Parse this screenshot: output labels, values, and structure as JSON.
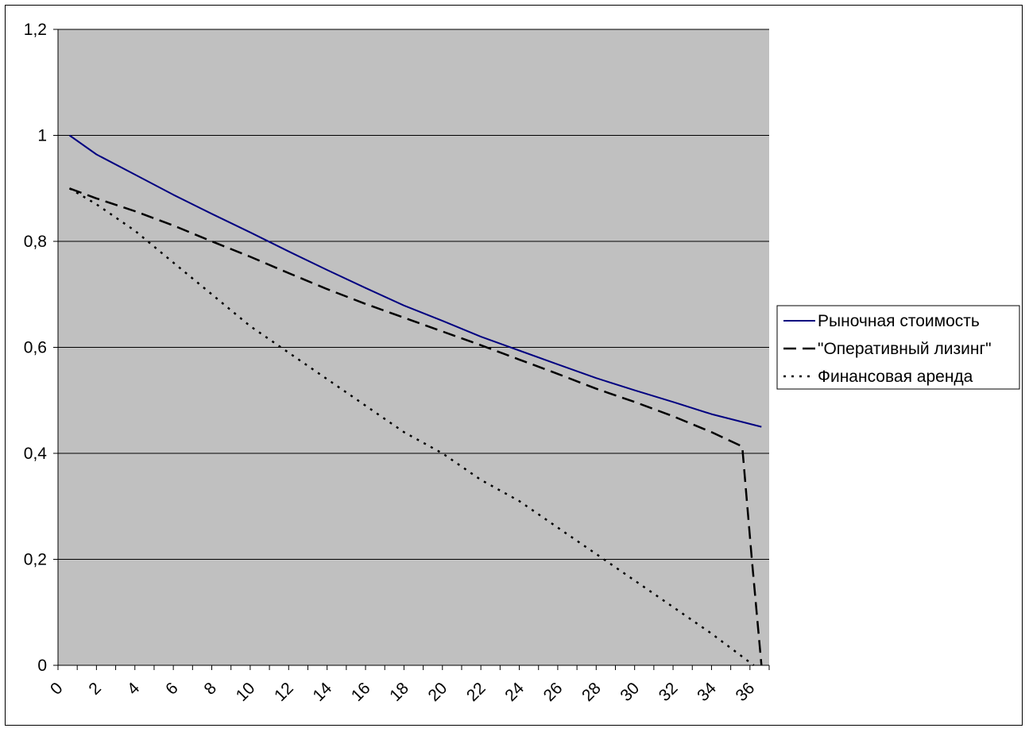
{
  "chart_data": {
    "type": "line",
    "title": "",
    "xlabel": "",
    "ylabel": "",
    "xlim": [
      0,
      37
    ],
    "ylim": [
      0,
      1.2
    ],
    "x_ticks": [
      0,
      2,
      4,
      6,
      8,
      10,
      12,
      14,
      16,
      18,
      20,
      22,
      24,
      26,
      28,
      30,
      32,
      34,
      36
    ],
    "x_tick_labels": [
      "0",
      "2",
      "4",
      "6",
      "8",
      "10",
      "12",
      "14",
      "16",
      "18",
      "20",
      "22",
      "24",
      "26",
      "28",
      "30",
      "32",
      "34",
      "36"
    ],
    "y_ticks": [
      0,
      0.2,
      0.4,
      0.6,
      0.8,
      1.0,
      1.2
    ],
    "y_tick_labels": [
      "0",
      "0,2",
      "0,4",
      "0,6",
      "0,8",
      "1",
      "1,2"
    ],
    "grid": "horizontal",
    "plot_background": "#c0c0c0",
    "legend_position": "right",
    "series": [
      {
        "name": "Рыночная стоимость",
        "color": "#000080",
        "style": "solid",
        "x": [
          0.6,
          2,
          4,
          6,
          8,
          10,
          12,
          14,
          16,
          18,
          20,
          22,
          24,
          26,
          28,
          30,
          32,
          34,
          36.6
        ],
        "y": [
          1.0,
          0.964,
          0.926,
          0.888,
          0.852,
          0.817,
          0.781,
          0.746,
          0.712,
          0.679,
          0.65,
          0.62,
          0.594,
          0.568,
          0.542,
          0.519,
          0.497,
          0.474,
          0.45
        ]
      },
      {
        "name": "\"Оперативный лизинг\"",
        "color": "#000000",
        "style": "dashed",
        "x": [
          0.6,
          2,
          4,
          6,
          8,
          10,
          12,
          14,
          16,
          18,
          20,
          22,
          24,
          26,
          28,
          30,
          32,
          34,
          35.6,
          36.1,
          36.6
        ],
        "y": [
          0.9,
          0.881,
          0.857,
          0.83,
          0.8,
          0.771,
          0.74,
          0.71,
          0.682,
          0.656,
          0.63,
          0.604,
          0.577,
          0.55,
          0.522,
          0.497,
          0.47,
          0.44,
          0.413,
          0.2,
          0.0
        ]
      },
      {
        "name": "Финансовая аренда",
        "color": "#000000",
        "style": "dotted",
        "x": [
          0.6,
          2,
          4,
          6,
          8,
          10,
          12,
          14,
          16,
          18,
          20,
          22,
          24,
          26,
          28,
          30,
          32,
          34,
          36.2
        ],
        "y": [
          0.9,
          0.87,
          0.82,
          0.76,
          0.7,
          0.64,
          0.59,
          0.54,
          0.49,
          0.44,
          0.4,
          0.35,
          0.31,
          0.26,
          0.21,
          0.16,
          0.11,
          0.06,
          0.0
        ]
      }
    ]
  }
}
